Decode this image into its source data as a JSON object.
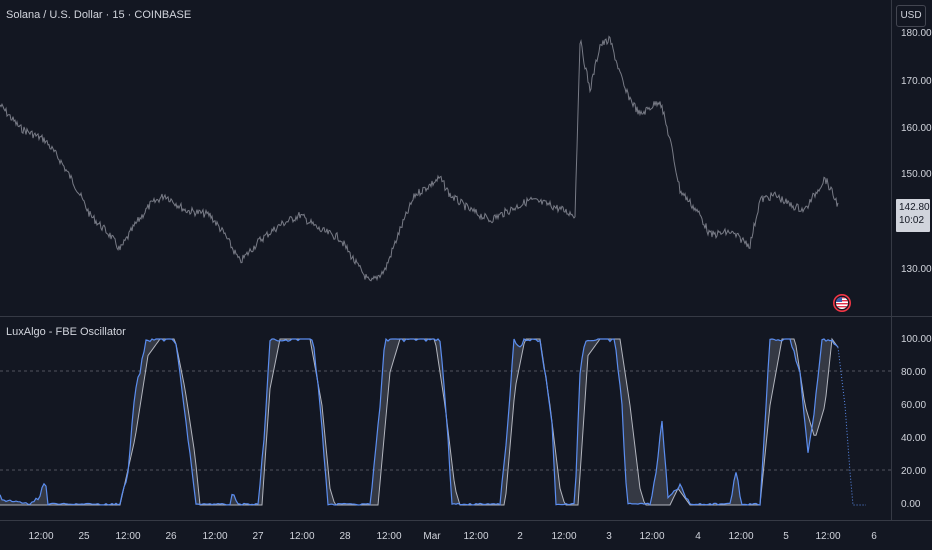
{
  "chart": {
    "symbol_title": "Solana / U.S. Dollar · 15 · COINBASE",
    "currency": "USD",
    "last_price": "142.80",
    "countdown": "10:02",
    "price_axis_labels": [
      "180.00",
      "170.00",
      "160.00",
      "150.00",
      "130.00"
    ]
  },
  "indicator": {
    "title": "LuxAlgo - FBE Oscillator",
    "axis_labels": [
      "100.00",
      "80.00",
      "60.00",
      "40.00",
      "20.00",
      "0.00"
    ]
  },
  "time_axis": {
    "labels": [
      "12:00",
      "25",
      "12:00",
      "26",
      "12:00",
      "27",
      "12:00",
      "28",
      "12:00",
      "Mar",
      "12:00",
      "2",
      "12:00",
      "3",
      "12:00",
      "4",
      "12:00",
      "5",
      "12:00",
      "6"
    ]
  },
  "colors": {
    "background": "#131722",
    "price_line": "#787b86",
    "osc_fast": "#5b8def",
    "osc_slow": "#b2b5be",
    "grid": "#363a45",
    "text": "#d1d4dc"
  },
  "icons": {
    "event_flag": "us-flag-icon"
  }
}
